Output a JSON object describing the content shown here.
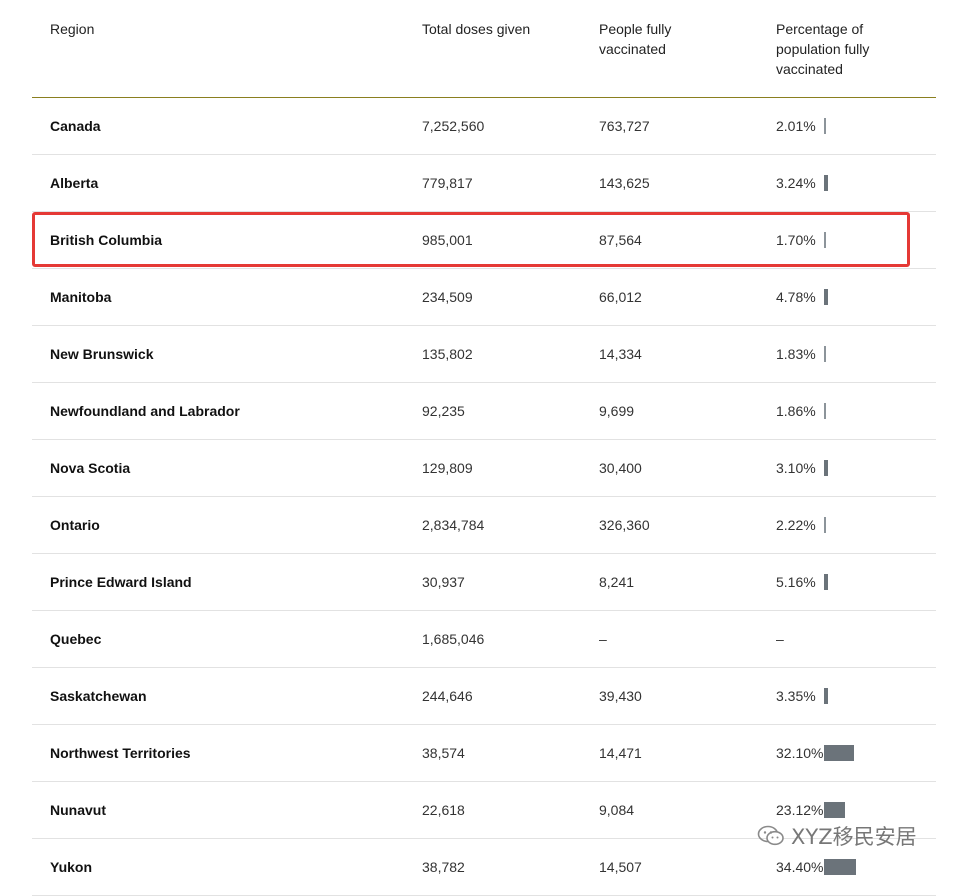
{
  "table": {
    "headers": {
      "region": "Region",
      "doses": "Total doses given",
      "full": "People fully vaccinated",
      "pct": "Percentage of population fully vaccinated"
    },
    "rows": [
      {
        "region": "Canada",
        "doses": "7,252,560",
        "full": "763,727",
        "pct": "2.01%",
        "value": 2.01
      },
      {
        "region": "Alberta",
        "doses": "779,817",
        "full": "143,625",
        "pct": "3.24%",
        "value": 3.24
      },
      {
        "region": "British Columbia",
        "doses": "985,001",
        "full": "87,564",
        "pct": "1.70%",
        "value": 1.7
      },
      {
        "region": "Manitoba",
        "doses": "234,509",
        "full": "66,012",
        "pct": "4.78%",
        "value": 4.78
      },
      {
        "region": "New Brunswick",
        "doses": "135,802",
        "full": "14,334",
        "pct": "1.83%",
        "value": 1.83
      },
      {
        "region": "Newfoundland and Labrador",
        "doses": "92,235",
        "full": "9,699",
        "pct": "1.86%",
        "value": 1.86
      },
      {
        "region": "Nova Scotia",
        "doses": "129,809",
        "full": "30,400",
        "pct": "3.10%",
        "value": 3.1
      },
      {
        "region": "Ontario",
        "doses": "2,834,784",
        "full": "326,360",
        "pct": "2.22%",
        "value": 2.22
      },
      {
        "region": "Prince Edward Island",
        "doses": "30,937",
        "full": "8,241",
        "pct": "5.16%",
        "value": 5.16
      },
      {
        "region": "Quebec",
        "doses": "1,685,046",
        "full": "–",
        "pct": "–",
        "value": null
      },
      {
        "region": "Saskatchewan",
        "doses": "244,646",
        "full": "39,430",
        "pct": "3.35%",
        "value": 3.35
      },
      {
        "region": "Northwest Territories",
        "doses": "38,574",
        "full": "14,471",
        "pct": "32.10%",
        "value": 32.1
      },
      {
        "region": "Nunavut",
        "doses": "22,618",
        "full": "9,084",
        "pct": "23.12%",
        "value": 23.12
      },
      {
        "region": "Yukon",
        "doses": "38,782",
        "full": "14,507",
        "pct": "34.40%",
        "value": 34.4
      }
    ],
    "bar_color": "#6b737a"
  },
  "highlight": {
    "row": "British Columbia",
    "color": "#e53935"
  },
  "watermark": {
    "text": "XYZ移民安居",
    "icon": "wechat-icon"
  }
}
